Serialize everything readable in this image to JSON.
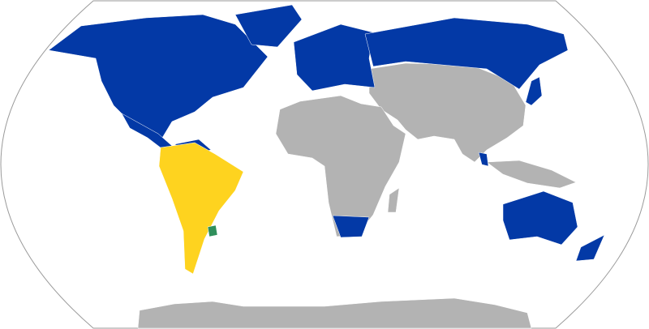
{
  "map": {
    "projection": "robinson",
    "colors": {
      "background": "#ffffff",
      "outline": "#9a9a9a",
      "category_blue": "#0339a6",
      "category_yellow": "#fed31f",
      "category_green": "#2f8f5b",
      "no_data_gray": "#b3b3b3",
      "border": "#ffffff"
    }
  }
}
